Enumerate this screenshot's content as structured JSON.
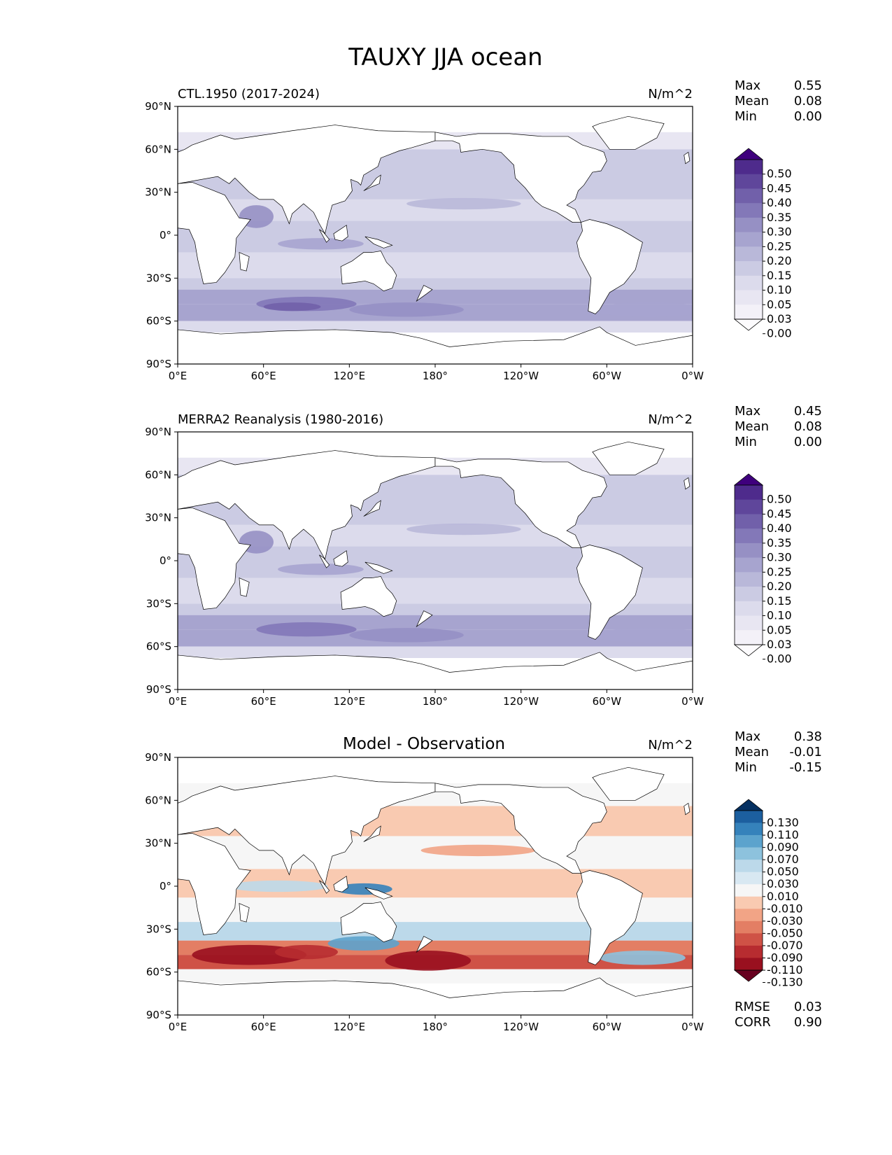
{
  "figure": {
    "title": "TAUXY JJA ocean"
  },
  "chart_data": [
    {
      "type": "heatmap",
      "title": "CTL.1950 (2017-2024)",
      "units": "N/m^2",
      "stats": [
        {
          "label": "Max",
          "value": "0.55"
        },
        {
          "label": "Mean",
          "value": "0.08"
        },
        {
          "label": "Min",
          "value": "0.00"
        }
      ],
      "x_ticks": [
        "0°E",
        "60°E",
        "120°E",
        "180°",
        "120°W",
        "60°W",
        "0°W"
      ],
      "y_ticks": [
        "90°N",
        "60°N",
        "30°N",
        "0°",
        "30°S",
        "60°S",
        "90°S"
      ],
      "xlim": [
        0,
        360
      ],
      "ylim": [
        -90,
        90
      ],
      "colormap": "Purples",
      "colorbar_levels": [
        "0.00",
        "0.03",
        "0.05",
        "0.10",
        "0.15",
        "0.20",
        "0.25",
        "0.30",
        "0.35",
        "0.40",
        "0.45",
        "0.50"
      ],
      "colorbar_colors": [
        "#fcfbfd",
        "#f3f1f8",
        "#e8e6f2",
        "#dcdbec",
        "#cbcbe3",
        "#b9b8d9",
        "#a7a4cf",
        "#9690c4",
        "#8378b8",
        "#7160aa",
        "#5f469b",
        "#4e2b8c",
        "#3f007d"
      ]
    },
    {
      "type": "heatmap",
      "title": "MERRA2 Reanalysis (1980-2016)",
      "units": "N/m^2",
      "stats": [
        {
          "label": "Max",
          "value": "0.45"
        },
        {
          "label": "Mean",
          "value": "0.08"
        },
        {
          "label": "Min",
          "value": "0.00"
        }
      ],
      "x_ticks": [
        "0°E",
        "60°E",
        "120°E",
        "180°",
        "120°W",
        "60°W",
        "0°W"
      ],
      "y_ticks": [
        "90°N",
        "60°N",
        "30°N",
        "0°",
        "30°S",
        "60°S",
        "90°S"
      ],
      "xlim": [
        0,
        360
      ],
      "ylim": [
        -90,
        90
      ],
      "colormap": "Purples",
      "colorbar_levels": [
        "0.00",
        "0.03",
        "0.05",
        "0.10",
        "0.15",
        "0.20",
        "0.25",
        "0.30",
        "0.35",
        "0.40",
        "0.45",
        "0.50"
      ],
      "colorbar_colors": [
        "#fcfbfd",
        "#f3f1f8",
        "#e8e6f2",
        "#dcdbec",
        "#cbcbe3",
        "#b9b8d9",
        "#a7a4cf",
        "#9690c4",
        "#8378b8",
        "#7160aa",
        "#5f469b",
        "#4e2b8c",
        "#3f007d"
      ]
    },
    {
      "type": "heatmap",
      "title": "Model - Observation",
      "units": "N/m^2",
      "stats": [
        {
          "label": "Max",
          "value": "0.38"
        },
        {
          "label": "Mean",
          "value": "-0.01"
        },
        {
          "label": "Min",
          "value": "-0.15"
        }
      ],
      "metrics": [
        {
          "label": "RMSE",
          "value": "0.03"
        },
        {
          "label": "CORR",
          "value": "0.90"
        }
      ],
      "x_ticks": [
        "0°E",
        "60°E",
        "120°E",
        "180°",
        "120°W",
        "60°W",
        "0°W"
      ],
      "y_ticks": [
        "90°N",
        "60°N",
        "30°N",
        "0°",
        "30°S",
        "60°S",
        "90°S"
      ],
      "xlim": [
        0,
        360
      ],
      "ylim": [
        -90,
        90
      ],
      "colormap": "RdBu",
      "colorbar_levels": [
        "-0.130",
        "-0.110",
        "-0.090",
        "-0.070",
        "-0.050",
        "-0.030",
        "-0.010",
        "0.010",
        "0.030",
        "0.050",
        "0.070",
        "0.090",
        "0.110",
        "0.130"
      ],
      "colorbar_colors": [
        "#67001f",
        "#99101f",
        "#b72c30",
        "#cf5246",
        "#e37e64",
        "#f2a486",
        "#f9cab1",
        "#f6f6f6",
        "#d8e8f2",
        "#bcd9ea",
        "#8dc2dd",
        "#5ca3cd",
        "#3582bb",
        "#1c5f9f",
        "#053061"
      ]
    }
  ]
}
